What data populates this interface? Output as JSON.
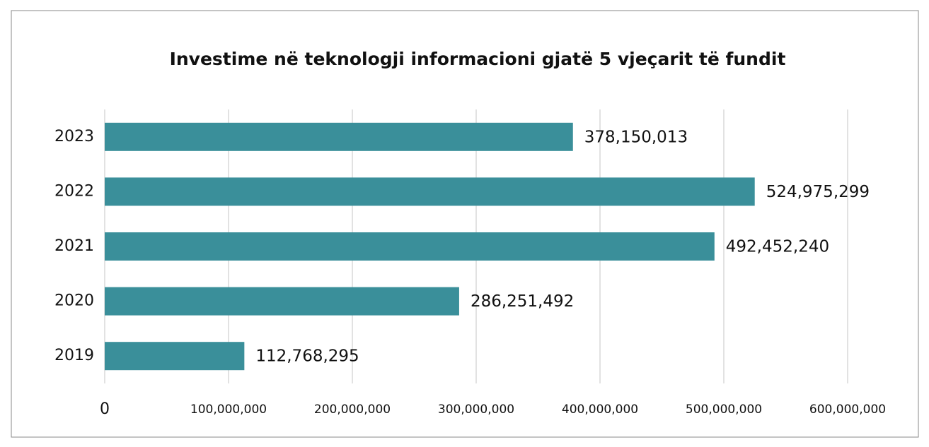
{
  "chart_data": {
    "type": "bar",
    "orientation": "horizontal",
    "title": "Investime në teknologji informacioni gjatë 5 vjeçarit të fundit",
    "categories": [
      "2019",
      "2020",
      "2021",
      "2022",
      "2023"
    ],
    "values": [
      112768295,
      286251492,
      492452240,
      524975299,
      378150013
    ],
    "value_labels": [
      "112,768,295",
      "286,251,492",
      "492,452,240",
      "524,975,299",
      "378,150,013"
    ],
    "color": "#3a8f9a",
    "xlim": [
      0,
      600000000
    ],
    "xticks": [
      0,
      {
        "value": 100000000,
        "label": "100,000,000"
      },
      {
        "value": 200000000,
        "label": "200,000,000"
      },
      {
        "value": 300000000,
        "label": "300,000,000"
      },
      {
        "value": 400000000,
        "label": "400,000,000"
      },
      {
        "value": 500000000,
        "label": "500,000,000"
      },
      {
        "value": 600000000,
        "label": "600,000,000"
      }
    ],
    "grid": true
  }
}
